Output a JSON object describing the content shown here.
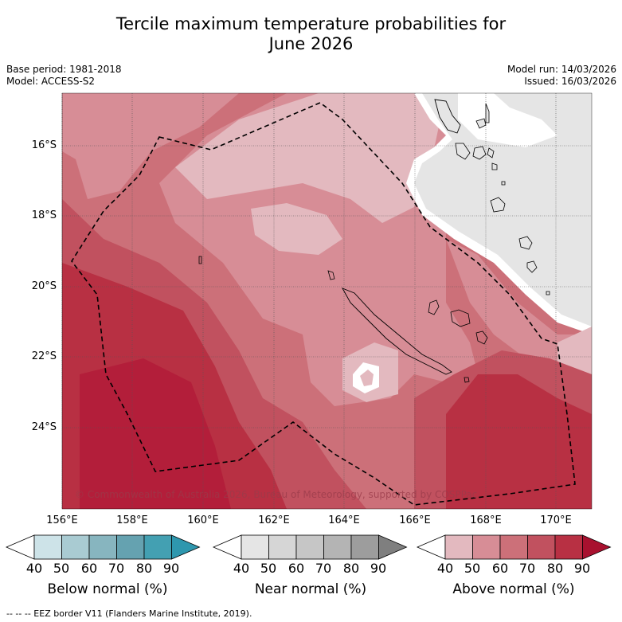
{
  "title_line1": "Tercile maximum temperature probabilities for",
  "title_line2": "June 2026",
  "left_meta": {
    "base_period": "Base period: 1981-2018",
    "model": "Model: ACCESS-S2"
  },
  "right_meta": {
    "model_run": "Model run: 14/03/2026",
    "issued": "Issued: 16/03/2026"
  },
  "copyright": "© Commonwealth of Australia 2026, Bureau of Meteorology, supported by COSPPac",
  "lat_labels": [
    "16°S",
    "18°S",
    "20°S",
    "22°S",
    "24°S"
  ],
  "lon_labels": [
    "156°E",
    "158°E",
    "160°E",
    "162°E",
    "164°E",
    "166°E",
    "168°E",
    "170°E"
  ],
  "colorbars": [
    {
      "title": "Below normal (%)",
      "ticks": [
        "40",
        "50",
        "60",
        "70",
        "80",
        "90"
      ],
      "colors": [
        "#ffffff",
        "#cde3e8",
        "#a9cbd2",
        "#87b5bf",
        "#65a2b0",
        "#43a0b2",
        "#2e97ae"
      ]
    },
    {
      "title": "Near normal (%)",
      "ticks": [
        "40",
        "50",
        "60",
        "70",
        "80",
        "90"
      ],
      "colors": [
        "#ffffff",
        "#e5e5e5",
        "#d6d6d6",
        "#c6c6c6",
        "#b4b4b4",
        "#9d9d9d",
        "#7f7f7f"
      ]
    },
    {
      "title": "Above normal (%)",
      "ticks": [
        "40",
        "50",
        "60",
        "70",
        "80",
        "90"
      ],
      "colors": [
        "#ffffff",
        "#e3b9bf",
        "#d78d96",
        "#cc7079",
        "#c1515f",
        "#b83043",
        "#a8112f"
      ]
    }
  ],
  "footer": "--  --  -- EEZ border V11 (Flanders Marine Institute, 2019)."
}
